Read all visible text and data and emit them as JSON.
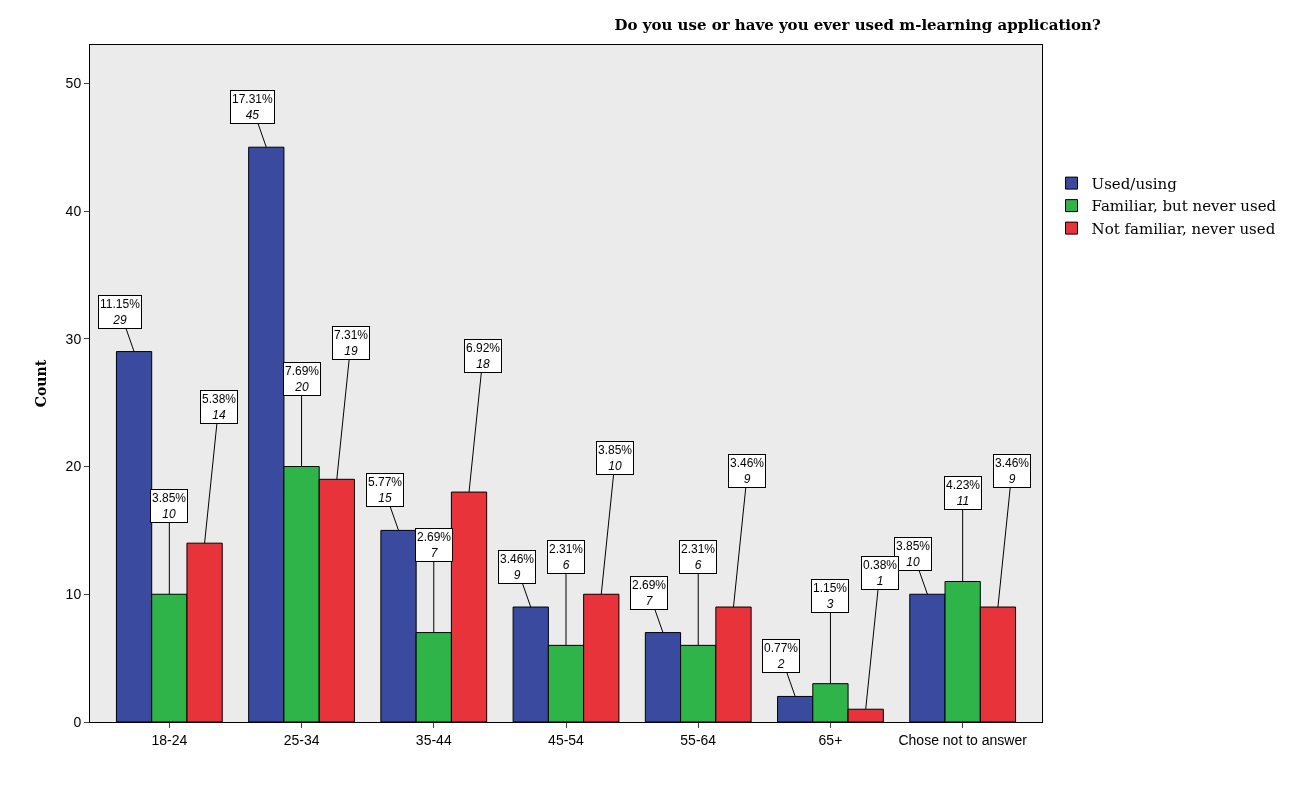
{
  "chart_data": {
    "type": "bar",
    "title": "Do you use or have you ever used m-learning application?",
    "ylabel": "Count",
    "categories": [
      "18-24",
      "25-34",
      "35-44",
      "45-54",
      "55-64",
      "65+",
      "Chose not to answer"
    ],
    "series": [
      {
        "name": "Used/using",
        "color": "#3a4a9e",
        "values": [
          29,
          45,
          15,
          9,
          7,
          2,
          10
        ],
        "value_labels": [
          "11.15%\n29",
          "17.31%\n45",
          "5.77%\n15",
          "3.46%\n9",
          "2.69%\n7",
          "0.77%\n2",
          "3.85%\n10"
        ]
      },
      {
        "name": "Familiar, but never used",
        "color": "#2fb44a",
        "values": [
          10,
          20,
          7,
          6,
          6,
          3,
          11
        ],
        "value_labels": [
          "3.85%\n10",
          "7.69%\n20",
          "2.69%\n7",
          "2.31%\n6",
          "2.31%\n6",
          "1.15%\n3",
          "4.23%\n11"
        ]
      },
      {
        "name": "Not familiar, never used",
        "color": "#e8333a",
        "values": [
          14,
          19,
          18,
          10,
          9,
          1,
          9
        ],
        "value_labels": [
          "5.38%\n14",
          "7.31%\n19",
          "6.92%\n18",
          "3.85%\n10",
          "3.46%\n9",
          "0.38%\n1",
          "3.46%\n9"
        ]
      }
    ],
    "ylim": [
      0,
      53
    ],
    "yticks": [
      0,
      10,
      20,
      30,
      40,
      50
    ],
    "grid": false,
    "legend": "right"
  }
}
